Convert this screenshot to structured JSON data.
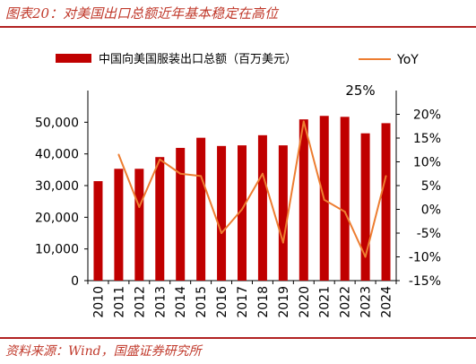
{
  "figure": {
    "title": "图表20：对美国出口总额近年基本稳定在高位",
    "source": "资料来源：Wind，国盛证券研究所"
  },
  "colors": {
    "bar": "#c00000",
    "line": "#ed7d31",
    "accent": "#b22222"
  },
  "chart_data": {
    "type": "bar",
    "categories": [
      "2010",
      "2011",
      "2012",
      "2013",
      "2014",
      "2015",
      "2016",
      "2017",
      "2018",
      "2019",
      "2020",
      "2021",
      "2022",
      "2023",
      "2024"
    ],
    "series": [
      {
        "name": "中国向美国服装出口总额（百万美元）",
        "type": "bar",
        "axis": "left",
        "values": [
          31400,
          35300,
          35300,
          39000,
          41900,
          45100,
          42500,
          42700,
          45900,
          42700,
          50900,
          52000,
          51700,
          46500,
          49700
        ]
      },
      {
        "name": "YoY",
        "type": "line",
        "axis": "right",
        "values": [
          null,
          11.5,
          0.5,
          10.5,
          7.5,
          7.0,
          -5.0,
          0.0,
          7.5,
          -7.0,
          18.5,
          2.0,
          -0.5,
          -10.0,
          7.0
        ]
      }
    ],
    "y_left": {
      "ylim": [
        0,
        60000
      ],
      "ticks": [
        "0",
        "10,000",
        "20,000",
        "30,000",
        "40,000",
        "50,000"
      ]
    },
    "y_right": {
      "ylim": [
        -15,
        25
      ],
      "ticks": [
        "-15%",
        "-10%",
        "-5%",
        "0%",
        "5%",
        "10%",
        "15%",
        "20%",
        "25%"
      ]
    },
    "grid": false,
    "legend_position": "top"
  }
}
